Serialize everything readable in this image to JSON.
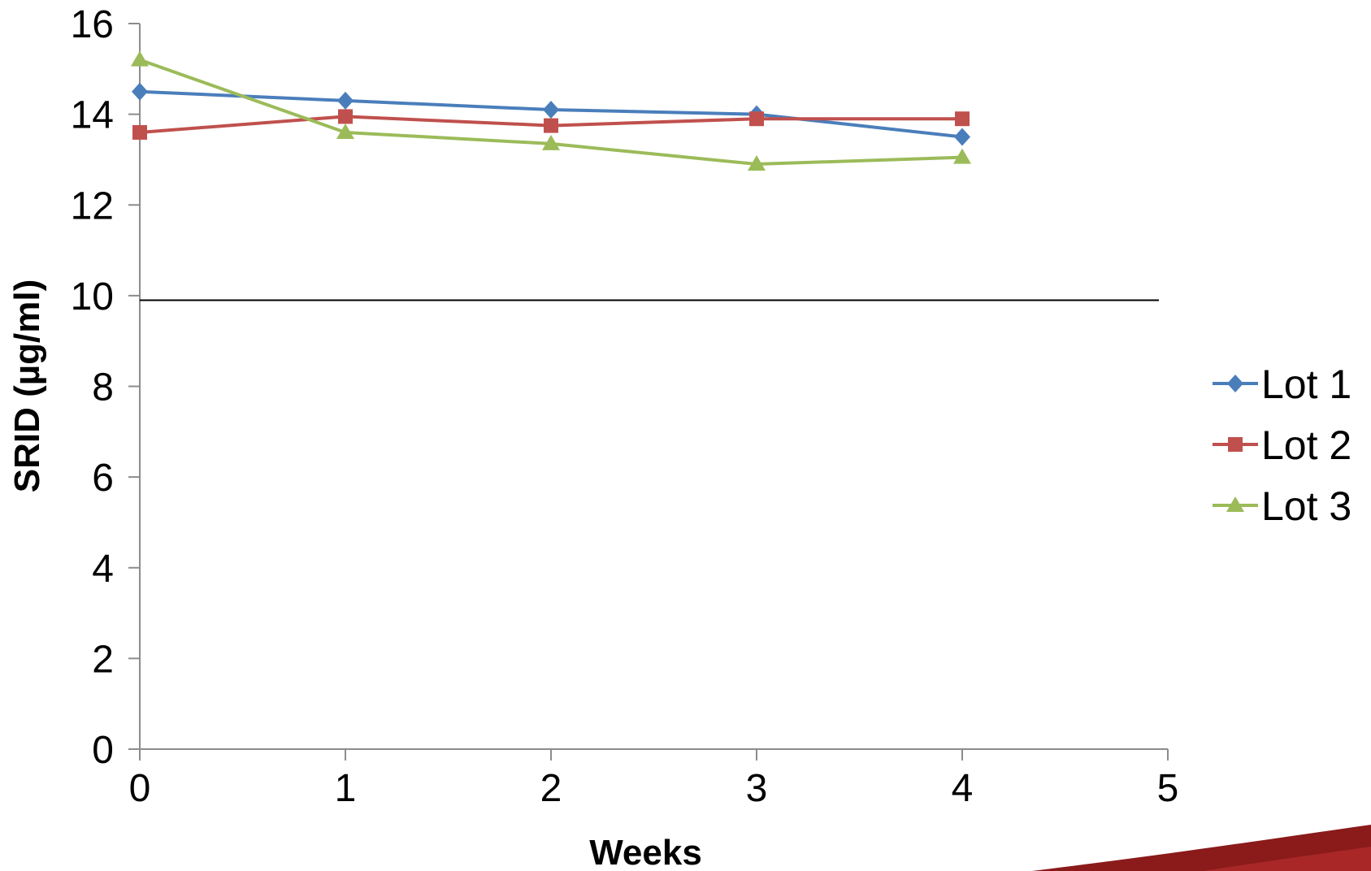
{
  "chart_data": {
    "type": "line",
    "title": "",
    "xlabel": "Weeks",
    "ylabel": "SRID (µg/ml)",
    "xlim": [
      0,
      5
    ],
    "ylim": [
      0,
      16
    ],
    "x_ticks": [
      "0",
      "1",
      "2",
      "3",
      "4",
      "5"
    ],
    "y_ticks": [
      "0",
      "2",
      "4",
      "6",
      "8",
      "10",
      "12",
      "14",
      "16"
    ],
    "grid": false,
    "legend_position": "right",
    "reference_line": {
      "y": 9.9
    },
    "series": [
      {
        "name": "Lot 1",
        "marker": "diamond",
        "color": "#4a7ebb",
        "x": [
          0,
          1,
          2,
          3,
          4
        ],
        "values": [
          14.5,
          14.3,
          14.1,
          14.0,
          13.5
        ]
      },
      {
        "name": "Lot 2",
        "marker": "square",
        "color": "#c0504d",
        "x": [
          0,
          1,
          2,
          3,
          4
        ],
        "values": [
          13.6,
          13.95,
          13.75,
          13.9,
          13.9
        ]
      },
      {
        "name": "Lot 3",
        "marker": "triangle",
        "color": "#9bbb59",
        "x": [
          0,
          1,
          2,
          3,
          4
        ],
        "values": [
          15.2,
          13.6,
          13.35,
          12.9,
          13.05
        ]
      }
    ]
  },
  "decoration": {
    "corner_ribbon_color": "#8b1a1a"
  }
}
